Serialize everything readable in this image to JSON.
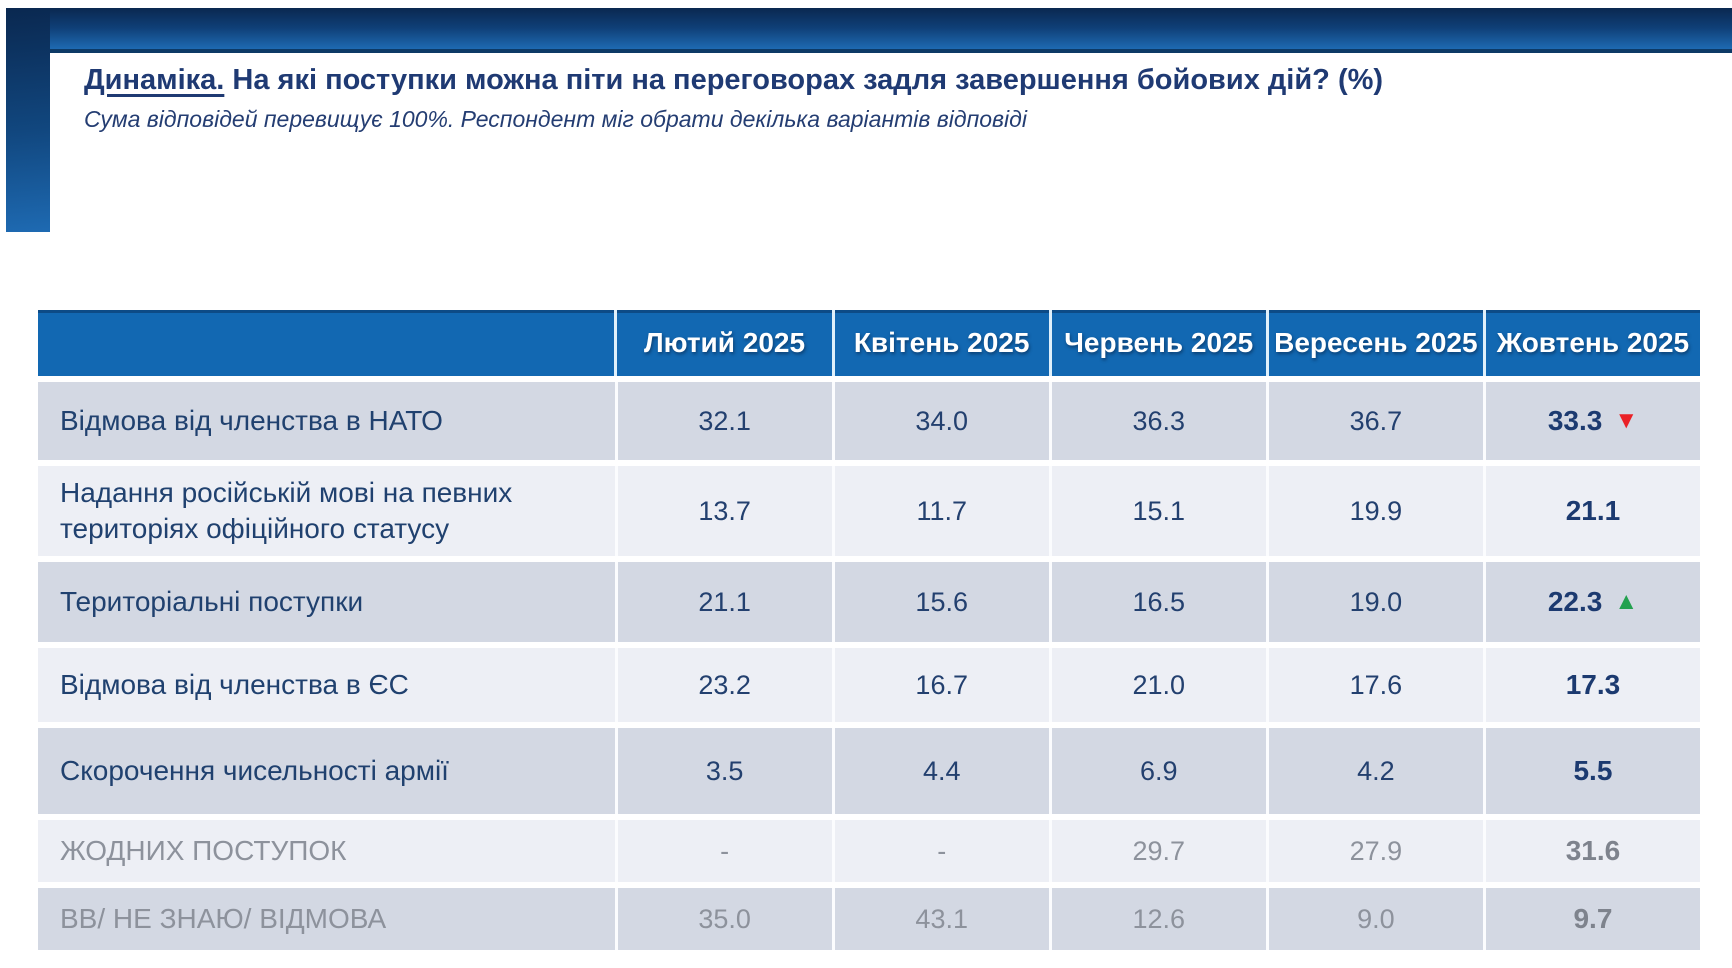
{
  "slide": {
    "title_lead": "Динаміка.",
    "title_rest": " На які поступки можна піти на переговорах задля завершення бойових дій? (%)",
    "subtitle": "Сума відповідей перевищує 100%. Респондент міг обрати декілька варіантів відповіді"
  },
  "colors": {
    "header_bg": "#1268b2",
    "banner_dark": "#0a2850",
    "banner_light": "#1e6ab2",
    "trend_up": "#23a14f",
    "trend_down": "#ea2127",
    "muted_text": "#8d929c",
    "navy_text": "#20416f"
  },
  "chart_data": {
    "type": "table",
    "title": "Динаміка. На які поступки можна піти на переговорах задля завершення бойових дій? (%)",
    "subtitle": "Сума відповідей перевищує 100%. Респондент міг обрати декілька варіантів відповіді",
    "columns": [
      "Лютий 2025",
      "Квітень 2025",
      "Червень 2025",
      "Вересень 2025",
      "Жовтень 2025"
    ],
    "rows": [
      {
        "label": "Відмова від членства в НАТО",
        "values": [
          32.1,
          34.0,
          36.3,
          36.7,
          33.3
        ],
        "display": [
          "32.1",
          "34.0",
          "36.3",
          "36.7",
          "33.3"
        ],
        "trend": "down",
        "muted": false
      },
      {
        "label": "Надання російській мові на певних територіях офіційного статусу",
        "values": [
          13.7,
          11.7,
          15.1,
          19.9,
          21.1
        ],
        "display": [
          "13.7",
          "11.7",
          "15.1",
          "19.9",
          "21.1"
        ],
        "trend": null,
        "muted": false
      },
      {
        "label": "Територіальні поступки",
        "values": [
          21.1,
          15.6,
          16.5,
          19.0,
          22.3
        ],
        "display": [
          "21.1",
          "15.6",
          "16.5",
          "19.0",
          "22.3"
        ],
        "trend": "up",
        "muted": false
      },
      {
        "label": "Відмова від членства в ЄС",
        "values": [
          23.2,
          16.7,
          21.0,
          17.6,
          17.3
        ],
        "display": [
          "23.2",
          "16.7",
          "21.0",
          "17.6",
          "17.3"
        ],
        "trend": null,
        "muted": false
      },
      {
        "label": "Скорочення чисельності армії",
        "values": [
          3.5,
          4.4,
          6.9,
          4.2,
          5.5
        ],
        "display": [
          "3.5",
          "4.4",
          "6.9",
          "4.2",
          "5.5"
        ],
        "trend": null,
        "muted": false
      },
      {
        "label": "ЖОДНИХ ПОСТУПОК",
        "values": [
          null,
          null,
          29.7,
          27.9,
          31.6
        ],
        "display": [
          "-",
          "-",
          "29.7",
          "27.9",
          "31.6"
        ],
        "trend": null,
        "muted": true
      },
      {
        "label": "ВВ/ НЕ ЗНАЮ/ ВІДМОВА",
        "values": [
          35.0,
          43.1,
          12.6,
          9.0,
          9.7
        ],
        "display": [
          "35.0",
          "43.1",
          "12.6",
          "9.0",
          "9.7"
        ],
        "trend": null,
        "muted": true
      }
    ]
  }
}
